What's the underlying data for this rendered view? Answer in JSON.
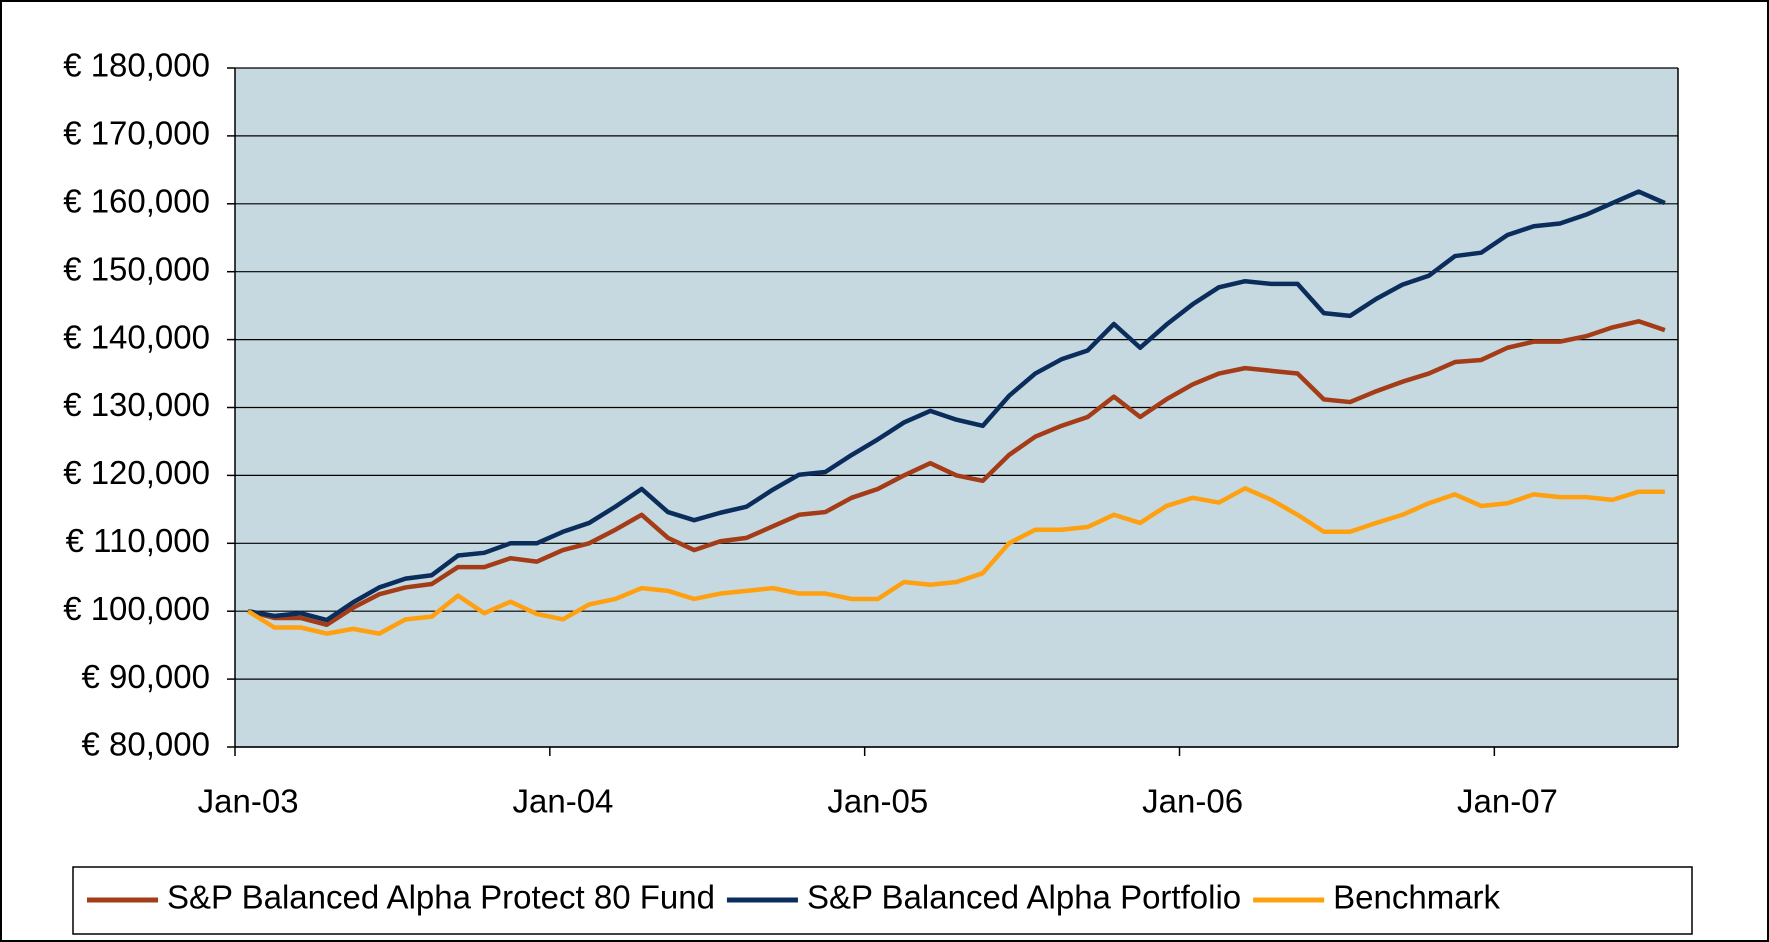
{
  "chart_data": {
    "type": "line",
    "categories": [
      "Jan-03",
      null,
      null,
      null,
      null,
      null,
      null,
      null,
      null,
      null,
      null,
      null,
      "Jan-04",
      null,
      null,
      null,
      null,
      null,
      null,
      null,
      null,
      null,
      null,
      null,
      "Jan-05",
      null,
      null,
      null,
      null,
      null,
      null,
      null,
      null,
      null,
      null,
      null,
      "Jan-06",
      null,
      null,
      null,
      null,
      null,
      null,
      null,
      null,
      null,
      null,
      null,
      "Jan-07",
      null,
      null,
      null,
      null,
      null,
      null
    ],
    "series": [
      {
        "name": "S&P Balanced Alpha Protect 80 Fund",
        "color": "#a33c17",
        "values": [
          100000,
          99000,
          99000,
          98000,
          100500,
          102500,
          103500,
          104000,
          106500,
          106500,
          107800,
          107300,
          109000,
          110000,
          112000,
          114200,
          110800,
          109000,
          110300,
          110800,
          112500,
          114200,
          114600,
          116700,
          118000,
          120000,
          121800,
          120000,
          119200,
          123000,
          125700,
          127300,
          128600,
          131600,
          128600,
          131200,
          133400,
          135000,
          135800,
          135400,
          135000,
          131200,
          130800,
          132400,
          133800,
          135000,
          136700,
          137000,
          138800,
          139700,
          139700,
          140500,
          141800,
          142700,
          141400
        ]
      },
      {
        "name": "S&P Balanced Alpha Portfolio",
        "color": "#0b2d5c",
        "values": [
          100000,
          99300,
          99700,
          98700,
          101300,
          103500,
          104800,
          105300,
          108200,
          108600,
          110000,
          110000,
          111700,
          113000,
          115400,
          118000,
          114600,
          113400,
          114500,
          115400,
          117900,
          120100,
          120500,
          123000,
          125300,
          127800,
          129500,
          128200,
          127300,
          131700,
          135000,
          137100,
          138400,
          142300,
          138800,
          142200,
          145200,
          147700,
          148600,
          148200,
          148200,
          143900,
          143500,
          146000,
          148100,
          149400,
          152300,
          152800,
          155400,
          156700,
          157100,
          158400,
          160100,
          161800,
          160100
        ]
      },
      {
        "name": "Benchmark",
        "color": "#ffa010",
        "values": [
          100000,
          97600,
          97600,
          96700,
          97400,
          96700,
          98800,
          99200,
          102300,
          99700,
          101400,
          99600,
          98800,
          101000,
          101800,
          103400,
          103000,
          101800,
          102600,
          103000,
          103400,
          102600,
          102600,
          101800,
          101800,
          104300,
          103900,
          104300,
          105600,
          110000,
          112000,
          112000,
          112400,
          114200,
          113000,
          115500,
          116700,
          116000,
          118100,
          116400,
          114200,
          111700,
          111700,
          113000,
          114200,
          115900,
          117200,
          115500,
          115900,
          117200,
          116800,
          116800,
          116400,
          117600,
          117600
        ]
      }
    ],
    "ylim": [
      80000,
      180000
    ],
    "yticks": [
      {
        "value": 80000,
        "label": "€ 80,000"
      },
      {
        "value": 90000,
        "label": "€ 90,000"
      },
      {
        "value": 100000,
        "label": "€ 100,000"
      },
      {
        "value": 110000,
        "label": "€ 110,000"
      },
      {
        "value": 120000,
        "label": "€ 120,000"
      },
      {
        "value": 130000,
        "label": "€ 130,000"
      },
      {
        "value": 140000,
        "label": "€ 140,000"
      },
      {
        "value": 150000,
        "label": "€ 150,000"
      },
      {
        "value": 160000,
        "label": "€ 160,000"
      },
      {
        "value": 170000,
        "label": "€ 170,000"
      },
      {
        "value": 180000,
        "label": "€ 180,000"
      }
    ],
    "grid": true,
    "legend": "bottom"
  }
}
